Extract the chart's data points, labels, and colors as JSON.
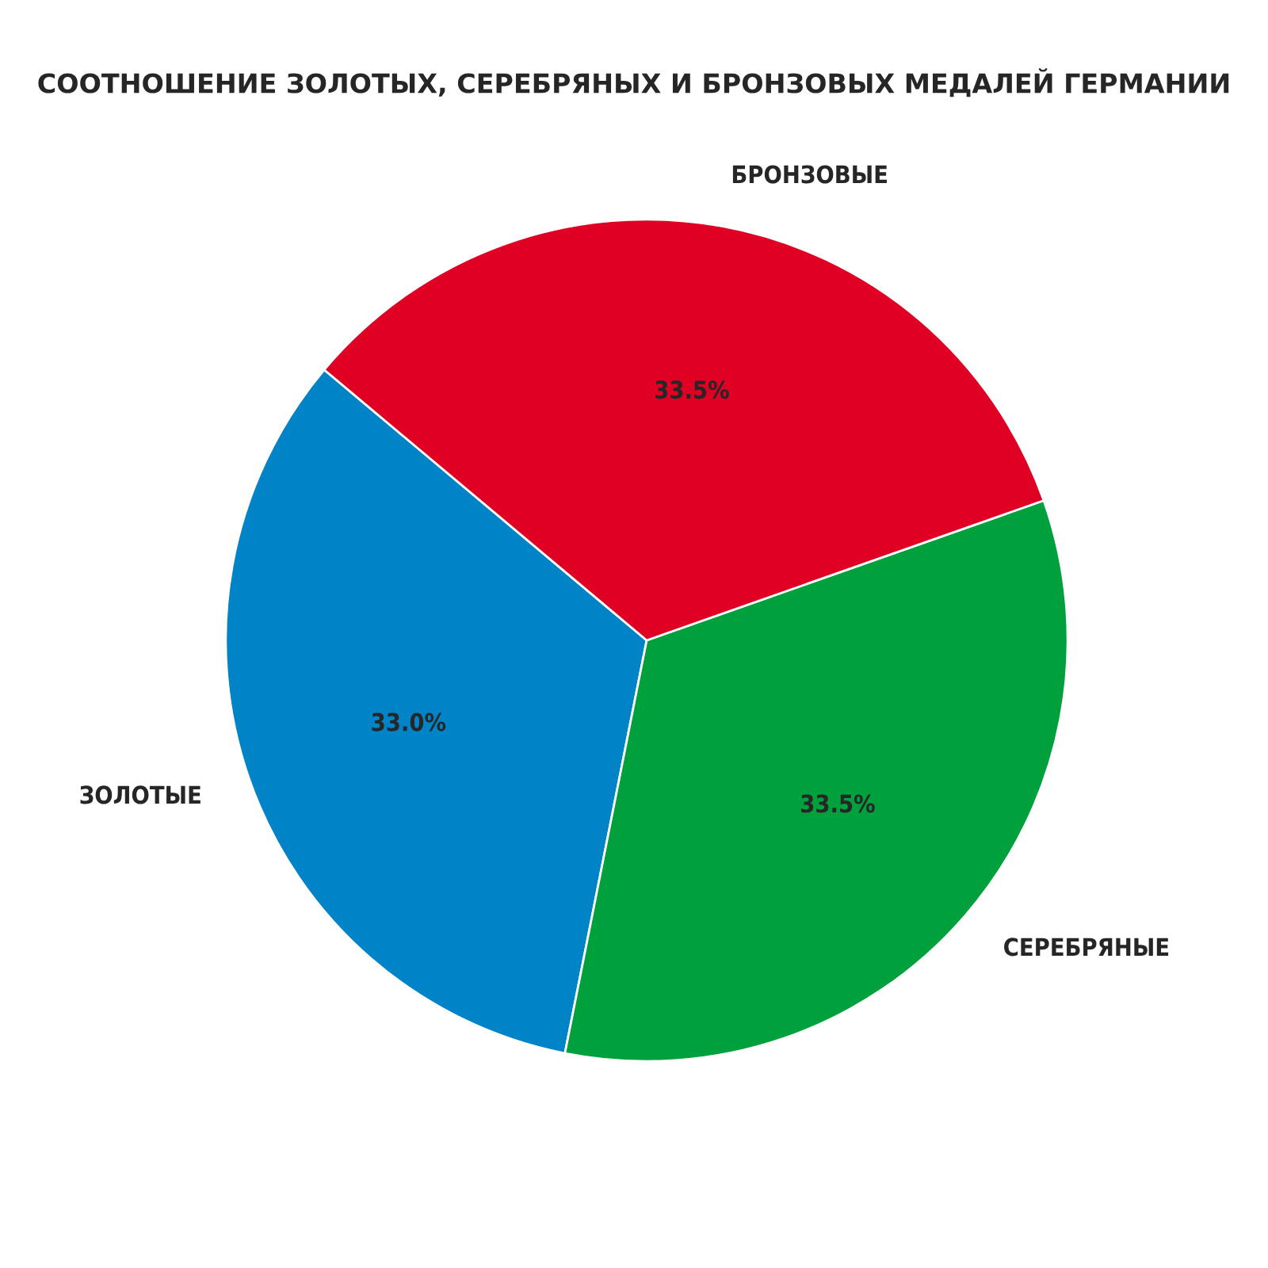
{
  "chart_data": {
    "type": "pie",
    "title": "СООТНОШЕНИЕ ЗОЛОТЫХ, СЕРЕБРЯНЫХ И БРОНЗОВЫХ МЕДАЛЕЙ ГЕРМАНИИ",
    "categories": [
      "ЗОЛОТЫЕ",
      "СЕРЕБРЯНЫЕ",
      "БРОНЗОВЫЕ"
    ],
    "values": [
      33.0,
      33.5,
      33.5
    ],
    "value_labels": [
      "33.0%",
      "33.5%",
      "33.5%"
    ],
    "colors": [
      "#0084c7",
      "#00a03c",
      "#e00024"
    ]
  }
}
